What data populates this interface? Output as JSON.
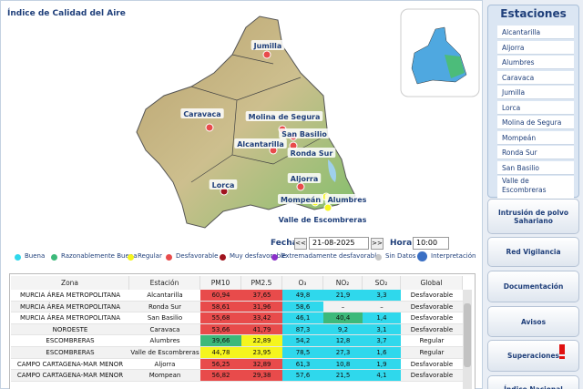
{
  "header": {
    "title": "Índice de Calidad del Aire"
  },
  "map": {
    "labels": [
      "Jumilla",
      "Caravaca",
      "Molina de Segura",
      "San Basilio",
      "Alcantarilla",
      "Ronda Sur",
      "Aljorra",
      "Lorca",
      "Alumbres",
      "Mompeán",
      "Valle de Escombreras"
    ]
  },
  "legend": {
    "items": [
      {
        "label": "Buena",
        "color": "#2fd8ec"
      },
      {
        "label": "Razonablemente Buena",
        "color": "#3cb97a"
      },
      {
        "label": "Regular",
        "color": "#f5f51e"
      },
      {
        "label": "Desfavorable",
        "color": "#e84b4b"
      },
      {
        "label": "Muy desfavorable",
        "color": "#a0141e"
      },
      {
        "label": "Extremadamente desfavorable",
        "color": "#8b2fc9"
      },
      {
        "label": "Sin Datos",
        "color": "#c8c8c8"
      }
    ],
    "help": "Interpretación"
  },
  "controls": {
    "date_label": "Fecha",
    "prev": "<<",
    "date": "21-08-2025",
    "next": ">>",
    "hour_label": "Hora",
    "hour": "10:00"
  },
  "table": {
    "columns": [
      "Zona",
      "Estación",
      "PM10",
      "PM2.5",
      "O₃",
      "NO₂",
      "SO₂",
      "Global"
    ],
    "rows": [
      [
        "MURCIA ÁREA METROPOLITANA",
        "Alcantarilla",
        "60,94",
        "37,65",
        "49,8",
        "21,9",
        "3,3",
        "Desfavorable"
      ],
      [
        "MURCIA ÁREA METROPOLITANA",
        "Ronda Sur",
        "58,61",
        "31,96",
        "58,6",
        "–",
        "–",
        "Desfavorable"
      ],
      [
        "MURCIA ÁREA METROPOLITANA",
        "San Basilio",
        "55,68",
        "33,42",
        "46,1",
        "40,4",
        "1,4",
        "Desfavorable"
      ],
      [
        "NOROESTE",
        "Caravaca",
        "53,66",
        "41,79",
        "87,3",
        "9,2",
        "3,1",
        "Desfavorable"
      ],
      [
        "ESCOMBRERAS",
        "Alumbres",
        "39,66",
        "22,89",
        "54,2",
        "12,8",
        "3,7",
        "Regular"
      ],
      [
        "ESCOMBRERAS",
        "Valle de Escombreras",
        "44,78",
        "23,95",
        "78,5",
        "27,3",
        "1,6",
        "Regular"
      ],
      [
        "CAMPO CARTAGENA-MAR MENOR",
        "Aljorra",
        "56,25",
        "32,89",
        "61,3",
        "10,8",
        "1,9",
        "Desfavorable"
      ],
      [
        "CAMPO CARTAGENA-MAR MENOR",
        "Mompean",
        "56,82",
        "29,38",
        "57,6",
        "21,5",
        "4,1",
        "Desfavorable"
      ]
    ],
    "colors": [
      [
        "#e84b4b",
        "#e84b4b",
        "#2fd8ec",
        "#2fd8ec",
        "#2fd8ec"
      ],
      [
        "#e84b4b",
        "#e84b4b",
        "#2fd8ec",
        null,
        null
      ],
      [
        "#e84b4b",
        "#e84b4b",
        "#2fd8ec",
        "#3cb97a",
        "#2fd8ec"
      ],
      [
        "#e84b4b",
        "#e84b4b",
        "#2fd8ec",
        "#2fd8ec",
        "#2fd8ec"
      ],
      [
        "#3cb97a",
        "#f5f51e",
        "#2fd8ec",
        "#2fd8ec",
        "#2fd8ec"
      ],
      [
        "#f5f51e",
        "#f5f51e",
        "#2fd8ec",
        "#2fd8ec",
        "#2fd8ec"
      ],
      [
        "#e84b4b",
        "#e84b4b",
        "#2fd8ec",
        "#2fd8ec",
        "#2fd8ec"
      ],
      [
        "#e84b4b",
        "#e84b4b",
        "#2fd8ec",
        "#2fd8ec",
        "#2fd8ec"
      ]
    ]
  },
  "sidebar": {
    "title": "Estaciones",
    "stations": [
      "Alcantarilla",
      "Aljorra",
      "Alumbres",
      "Caravaca",
      "Jumilla",
      "Lorca",
      "Molina de Segura",
      "Mompeán",
      "Ronda Sur",
      "San Basilio",
      "Valle de Escombreras"
    ],
    "buttons": [
      "Intrusión de polvo Sahariano",
      "Red Vigilancia",
      "Documentación",
      "Avisos",
      "Superaciones",
      "Índice Nacional"
    ]
  }
}
